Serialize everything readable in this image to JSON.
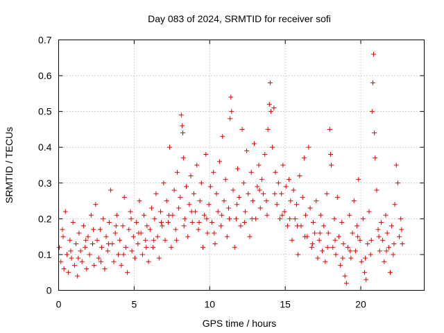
{
  "chart_data": {
    "type": "scatter",
    "title": "Day 083 of 2024, SRMTID for receiver sofi",
    "xlabel": "GPS time / hours",
    "ylabel": "SRMTID / TECUs",
    "xlim": [
      0,
      24.2
    ],
    "ylim": [
      0,
      0.7
    ],
    "x_ticks": [
      0,
      5,
      10,
      15,
      20
    ],
    "x_tick_labels": [
      "0",
      "5",
      "10",
      "15",
      "20"
    ],
    "y_ticks": [
      0,
      0.1,
      0.2,
      0.3,
      0.4,
      0.5,
      0.6,
      0.7
    ],
    "y_tick_labels": [
      "0",
      "0.1",
      "0.2",
      "0.3",
      "0.4",
      "0.5",
      "0.6",
      "0.7"
    ],
    "grid": true,
    "marker": "plus",
    "series_color": "#e00000",
    "series": [
      {
        "name": "SRMTID",
        "points": [
          [
            0.05,
            0.12
          ],
          [
            0.15,
            0.08
          ],
          [
            0.25,
            0.17
          ],
          [
            0.35,
            0.06
          ],
          [
            0.45,
            0.22
          ],
          [
            0.55,
            0.1
          ],
          [
            0.65,
            0.05
          ],
          [
            0.75,
            0.14
          ],
          [
            0.85,
            0.09
          ],
          [
            0.95,
            0.19
          ],
          [
            1.05,
            0.07
          ],
          [
            1.15,
            0.13
          ],
          [
            1.25,
            0.04
          ],
          [
            1.35,
            0.16
          ],
          [
            1.45,
            0.11
          ],
          [
            1.55,
            0.08
          ],
          [
            1.65,
            0.18
          ],
          [
            1.75,
            0.12
          ],
          [
            1.85,
            0.06
          ],
          [
            1.95,
            0.15
          ],
          [
            2.05,
            0.1
          ],
          [
            2.15,
            0.21
          ],
          [
            2.25,
            0.13
          ],
          [
            2.35,
            0.07
          ],
          [
            2.45,
            0.24
          ],
          [
            2.55,
            0.14
          ],
          [
            2.65,
            0.09
          ],
          [
            2.75,
            0.17
          ],
          [
            2.85,
            0.12
          ],
          [
            2.95,
            0.2
          ],
          [
            3.05,
            0.06
          ],
          [
            3.15,
            0.15
          ],
          [
            3.25,
            0.11
          ],
          [
            3.35,
            0.19
          ],
          [
            3.45,
            0.28
          ],
          [
            3.55,
            0.13
          ],
          [
            3.65,
            0.08
          ],
          [
            3.75,
            0.16
          ],
          [
            3.85,
            0.21
          ],
          [
            3.95,
            0.1
          ],
          [
            4.05,
            0.14
          ],
          [
            4.15,
            0.07
          ],
          [
            4.25,
            0.18
          ],
          [
            4.35,
            0.26
          ],
          [
            4.45,
            0.12
          ],
          [
            4.55,
            0.05
          ],
          [
            4.65,
            0.17
          ],
          [
            4.75,
            0.22
          ],
          [
            4.85,
            0.11
          ],
          [
            4.95,
            0.15
          ],
          [
            5.05,
            0.09
          ],
          [
            5.15,
            0.19
          ],
          [
            5.25,
            0.13
          ],
          [
            5.35,
            0.25
          ],
          [
            5.45,
            0.16
          ],
          [
            5.55,
            0.1
          ],
          [
            5.65,
            0.21
          ],
          [
            5.75,
            0.14
          ],
          [
            5.85,
            0.18
          ],
          [
            5.95,
            0.08
          ],
          [
            6.05,
            0.17
          ],
          [
            6.15,
            0.23
          ],
          [
            6.25,
            0.12
          ],
          [
            6.35,
            0.2
          ],
          [
            6.45,
            0.27
          ],
          [
            6.55,
            0.15
          ],
          [
            6.65,
            0.09
          ],
          [
            6.75,
            0.22
          ],
          [
            6.85,
            0.18
          ],
          [
            6.95,
            0.3
          ],
          [
            7.05,
            0.14
          ],
          [
            7.15,
            0.25
          ],
          [
            7.25,
            0.19
          ],
          [
            7.35,
            0.4
          ],
          [
            7.45,
            0.12
          ],
          [
            7.55,
            0.21
          ],
          [
            7.65,
            0.28
          ],
          [
            7.75,
            0.17
          ],
          [
            7.85,
            0.33
          ],
          [
            7.95,
            0.23
          ],
          [
            8.05,
            0.26
          ],
          [
            8.12,
            0.49
          ],
          [
            8.18,
            0.46
          ],
          [
            8.22,
            0.44
          ],
          [
            8.26,
            0.37
          ],
          [
            8.35,
            0.2
          ],
          [
            8.45,
            0.29
          ],
          [
            8.55,
            0.15
          ],
          [
            8.65,
            0.24
          ],
          [
            8.75,
            0.32
          ],
          [
            8.85,
            0.19
          ],
          [
            8.95,
            0.27
          ],
          [
            9.05,
            0.22
          ],
          [
            9.15,
            0.35
          ],
          [
            9.25,
            0.17
          ],
          [
            9.35,
            0.25
          ],
          [
            9.45,
            0.3
          ],
          [
            9.55,
            0.12
          ],
          [
            9.65,
            0.21
          ],
          [
            9.75,
            0.38
          ],
          [
            9.85,
            0.16
          ],
          [
            9.95,
            0.24
          ],
          [
            10.05,
            0.29
          ],
          [
            10.15,
            0.19
          ],
          [
            10.25,
            0.33
          ],
          [
            10.35,
            0.13
          ],
          [
            10.45,
            0.27
          ],
          [
            10.55,
            0.22
          ],
          [
            10.65,
            0.36
          ],
          [
            10.75,
            0.18
          ],
          [
            10.85,
            0.43
          ],
          [
            10.95,
            0.25
          ],
          [
            11.05,
            0.31
          ],
          [
            11.15,
            0.15
          ],
          [
            11.25,
            0.23
          ],
          [
            11.35,
            0.48
          ],
          [
            11.4,
            0.54
          ],
          [
            11.45,
            0.5
          ],
          [
            11.55,
            0.28
          ],
          [
            11.65,
            0.12
          ],
          [
            11.75,
            0.2
          ],
          [
            11.85,
            0.34
          ],
          [
            11.95,
            0.26
          ],
          [
            12.05,
            0.18
          ],
          [
            12.15,
            0.45
          ],
          [
            12.25,
            0.3
          ],
          [
            12.35,
            0.22
          ],
          [
            12.45,
            0.39
          ],
          [
            12.55,
            0.27
          ],
          [
            12.65,
            0.15
          ],
          [
            12.75,
            0.33
          ],
          [
            12.85,
            0.25
          ],
          [
            12.95,
            0.41
          ],
          [
            13.05,
            0.2
          ],
          [
            13.15,
            0.29
          ],
          [
            13.25,
            0.35
          ],
          [
            13.35,
            0.23
          ],
          [
            13.45,
            0.31
          ],
          [
            13.55,
            0.27
          ],
          [
            13.65,
            0.38
          ],
          [
            13.75,
            0.25
          ],
          [
            13.85,
            0.45
          ],
          [
            13.95,
            0.52
          ],
          [
            14.0,
            0.58
          ],
          [
            14.05,
            0.5
          ],
          [
            14.15,
            0.4
          ],
          [
            14.25,
            0.51
          ],
          [
            14.35,
            0.33
          ],
          [
            14.45,
            0.24
          ],
          [
            14.55,
            0.3
          ],
          [
            14.65,
            0.2
          ],
          [
            14.75,
            0.27
          ],
          [
            14.85,
            0.35
          ],
          [
            14.95,
            0.22
          ],
          [
            15.05,
            0.29
          ],
          [
            15.15,
            0.18
          ],
          [
            15.25,
            0.31
          ],
          [
            15.35,
            0.25
          ],
          [
            15.45,
            0.14
          ],
          [
            15.55,
            0.28
          ],
          [
            15.65,
            0.2
          ],
          [
            15.75,
            0.24
          ],
          [
            15.85,
            0.1
          ],
          [
            15.95,
            0.32
          ],
          [
            16.05,
            0.18
          ],
          [
            16.15,
            0.26
          ],
          [
            16.25,
            0.37
          ],
          [
            16.35,
            0.21
          ],
          [
            16.45,
            0.15
          ],
          [
            16.55,
            0.4
          ],
          [
            16.65,
            0.23
          ],
          [
            16.75,
            0.12
          ],
          [
            16.85,
            0.19
          ],
          [
            16.95,
            0.16
          ],
          [
            17.05,
            0.25
          ],
          [
            17.15,
            0.09
          ],
          [
            17.25,
            0.14
          ],
          [
            17.35,
            0.21
          ],
          [
            17.45,
            0.11
          ],
          [
            17.55,
            0.18
          ],
          [
            17.65,
            0.08
          ],
          [
            17.75,
            0.27
          ],
          [
            17.85,
            0.16
          ],
          [
            17.95,
            0.45
          ],
          [
            18.0,
            0.38
          ],
          [
            18.05,
            0.35
          ],
          [
            18.15,
            0.12
          ],
          [
            18.25,
            0.2
          ],
          [
            18.35,
            0.1
          ],
          [
            18.45,
            0.26
          ],
          [
            18.55,
            0.15
          ],
          [
            18.65,
            0.07
          ],
          [
            18.75,
            0.19
          ],
          [
            18.85,
            0.13
          ],
          [
            18.95,
            0.04
          ],
          [
            19.05,
            0.02
          ],
          [
            19.15,
            0.12
          ],
          [
            19.25,
            0.21
          ],
          [
            19.35,
            0.09
          ],
          [
            19.45,
            0.16
          ],
          [
            19.55,
            0.25
          ],
          [
            19.65,
            0.11
          ],
          [
            19.75,
            0.18
          ],
          [
            19.85,
            0.31
          ],
          [
            19.95,
            0.14
          ],
          [
            20.05,
            0.08
          ],
          [
            20.15,
            0.2
          ],
          [
            20.25,
            0.05
          ],
          [
            20.35,
            0.03
          ],
          [
            20.45,
            0.13
          ],
          [
            20.55,
            0.22
          ],
          [
            20.65,
            0.1
          ],
          [
            20.75,
            0.5
          ],
          [
            20.8,
            0.58
          ],
          [
            20.85,
            0.66
          ],
          [
            20.9,
            0.44
          ],
          [
            20.95,
            0.37
          ],
          [
            21.05,
            0.28
          ],
          [
            21.15,
            0.17
          ],
          [
            21.25,
            0.11
          ],
          [
            21.35,
            0.19
          ],
          [
            21.45,
            0.14
          ],
          [
            21.55,
            0.08
          ],
          [
            21.65,
            0.21
          ],
          [
            21.75,
            0.16
          ],
          [
            21.85,
            0.12
          ],
          [
            21.95,
            0.05
          ],
          [
            22.05,
            0.18
          ],
          [
            22.15,
            0.1
          ],
          [
            22.25,
            0.24
          ],
          [
            22.35,
            0.35
          ],
          [
            22.45,
            0.3
          ],
          [
            22.55,
            0.15
          ],
          [
            22.65,
            0.2
          ],
          [
            22.75,
            0.13
          ],
          [
            0.3,
            0.15
          ],
          [
            0.8,
            0.11
          ],
          [
            1.3,
            0.09
          ],
          [
            1.8,
            0.14
          ],
          [
            2.3,
            0.17
          ],
          [
            2.8,
            0.08
          ],
          [
            3.3,
            0.13
          ],
          [
            3.8,
            0.18
          ],
          [
            4.3,
            0.1
          ],
          [
            4.8,
            0.2
          ],
          [
            5.3,
            0.16
          ],
          [
            5.8,
            0.12
          ],
          [
            6.3,
            0.14
          ],
          [
            6.8,
            0.19
          ],
          [
            7.3,
            0.21
          ],
          [
            7.8,
            0.14
          ],
          [
            8.3,
            0.18
          ],
          [
            8.8,
            0.22
          ],
          [
            9.3,
            0.19
          ],
          [
            9.8,
            0.2
          ],
          [
            10.3,
            0.16
          ],
          [
            10.8,
            0.21
          ],
          [
            11.3,
            0.2
          ],
          [
            11.8,
            0.24
          ],
          [
            12.3,
            0.19
          ],
          [
            12.8,
            0.2
          ],
          [
            13.3,
            0.28
          ],
          [
            13.8,
            0.21
          ],
          [
            14.3,
            0.27
          ],
          [
            14.8,
            0.21
          ],
          [
            15.3,
            0.2
          ],
          [
            15.8,
            0.18
          ],
          [
            16.3,
            0.15
          ],
          [
            16.8,
            0.13
          ],
          [
            17.3,
            0.16
          ],
          [
            17.8,
            0.12
          ],
          [
            18.3,
            0.14
          ],
          [
            18.8,
            0.09
          ],
          [
            19.3,
            0.11
          ],
          [
            19.8,
            0.15
          ],
          [
            20.3,
            0.09
          ],
          [
            20.7,
            0.14
          ],
          [
            21.2,
            0.15
          ],
          [
            21.7,
            0.11
          ],
          [
            22.2,
            0.13
          ],
          [
            22.7,
            0.17
          ]
        ]
      }
    ]
  }
}
